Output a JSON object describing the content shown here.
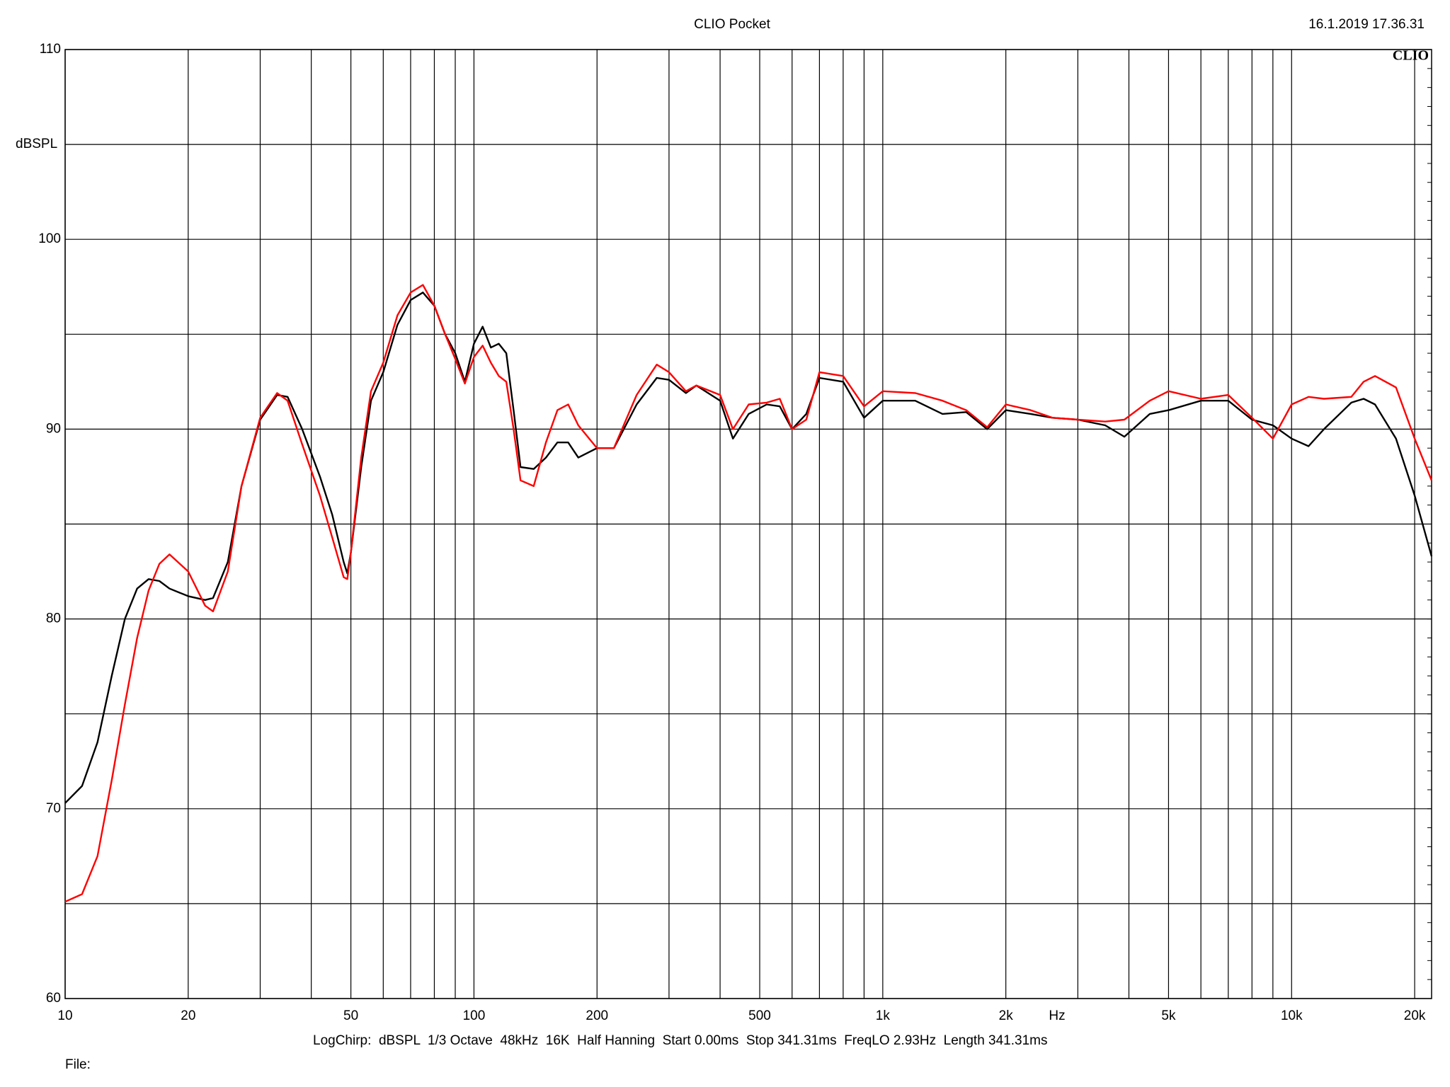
{
  "chart_data": {
    "type": "line",
    "title": "CLIO Pocket",
    "timestamp": "16.1.2019 17.36.31",
    "logo": "CLIO",
    "x_label": "Hz",
    "y_label": "dBSPL",
    "footer": "LogChirp:  dBSPL  1/3 Octave  48kHz  16K  Half Hanning  Start 0.00ms  Stop 341.31ms  FreqLO 2.93Hz  Length 341.31ms",
    "file_label": "File:",
    "x_scale": "log",
    "grid": true,
    "xlim": [
      10,
      22000
    ],
    "ylim": [
      60,
      110
    ],
    "xticks": [
      10,
      20,
      50,
      100,
      200,
      500,
      {
        "value": 1000,
        "label": "1k"
      },
      {
        "value": 2000,
        "label": "2k"
      },
      {
        "value": 5000,
        "label": "5k"
      },
      {
        "value": 10000,
        "label": "10k"
      },
      {
        "value": 20000,
        "label": "20k"
      }
    ],
    "minor_xticks": [
      30,
      40,
      60,
      70,
      80,
      90,
      300,
      400,
      600,
      700,
      800,
      900,
      3000,
      4000,
      6000,
      7000,
      8000,
      9000
    ],
    "yticks": [
      60,
      70,
      80,
      90,
      100,
      110
    ],
    "minor_yticks": [
      65,
      75,
      85,
      95,
      105
    ],
    "x": [
      10,
      11,
      12,
      13,
      14,
      15,
      16,
      17,
      18,
      20,
      22,
      23,
      25,
      27,
      30,
      33,
      35,
      38,
      42,
      45,
      48,
      49,
      50,
      53,
      56,
      60,
      65,
      70,
      75,
      80,
      85,
      90,
      95,
      100,
      105,
      110,
      115,
      120,
      125,
      130,
      140,
      150,
      160,
      170,
      180,
      200,
      220,
      250,
      280,
      300,
      330,
      350,
      400,
      430,
      470,
      520,
      560,
      600,
      650,
      700,
      800,
      900,
      1000,
      1200,
      1400,
      1600,
      1800,
      2000,
      2300,
      2600,
      3000,
      3500,
      3900,
      4500,
      5000,
      6000,
      7000,
      8000,
      9000,
      10000,
      11000,
      12000,
      14000,
      15000,
      16000,
      18000,
      20000,
      22000
    ],
    "series": [
      {
        "name": "black",
        "color": "#000000",
        "values": [
          70.3,
          71.2,
          73.5,
          77,
          80,
          81.6,
          82.1,
          82.0,
          81.6,
          81.2,
          81.0,
          81.1,
          83,
          87,
          90.5,
          91.8,
          91.7,
          90,
          87.5,
          85.5,
          83,
          82.4,
          83.5,
          88,
          91.5,
          93,
          95.5,
          96.8,
          97.2,
          96.5,
          95,
          94,
          92.5,
          94.5,
          95.4,
          94.3,
          94.5,
          94,
          91,
          88,
          87.9,
          88.5,
          89.3,
          89.3,
          88.5,
          89,
          89,
          91.3,
          92.7,
          92.6,
          91.9,
          92.3,
          91.5,
          89.5,
          90.8,
          91.3,
          91.2,
          90,
          90.8,
          92.7,
          92.5,
          90.6,
          91.5,
          91.5,
          90.8,
          90.9,
          90,
          91,
          90.8,
          90.6,
          90.5,
          90.2,
          89.6,
          90.8,
          91,
          91.5,
          91.5,
          90.5,
          90.2,
          89.5,
          89.1,
          90,
          91.4,
          91.6,
          91.3,
          89.5,
          86.5,
          83.3
        ]
      },
      {
        "name": "red",
        "color": "#ff0000",
        "values": [
          65.1,
          65.5,
          67.5,
          71.5,
          75.5,
          79,
          81.5,
          82.9,
          83.4,
          82.5,
          80.7,
          80.4,
          82.5,
          87,
          90.6,
          91.9,
          91.5,
          89.2,
          86.5,
          84.3,
          82.2,
          82.1,
          83.5,
          88.5,
          92,
          93.5,
          96,
          97.2,
          97.6,
          96.5,
          95,
          93.7,
          92.4,
          93.8,
          94.4,
          93.5,
          92.8,
          92.5,
          90,
          87.3,
          87,
          89.3,
          91,
          91.3,
          90.2,
          89,
          89,
          91.8,
          93.4,
          93,
          92,
          92.3,
          91.8,
          90,
          91.3,
          91.4,
          91.6,
          90,
          90.5,
          93,
          92.8,
          91.2,
          92,
          91.9,
          91.5,
          91,
          90.1,
          91.3,
          91,
          90.6,
          90.5,
          90.4,
          90.5,
          91.5,
          92,
          91.6,
          91.8,
          90.6,
          89.5,
          91.3,
          91.7,
          91.6,
          91.7,
          92.5,
          92.8,
          92.2,
          89.5,
          87.3
        ]
      }
    ]
  }
}
